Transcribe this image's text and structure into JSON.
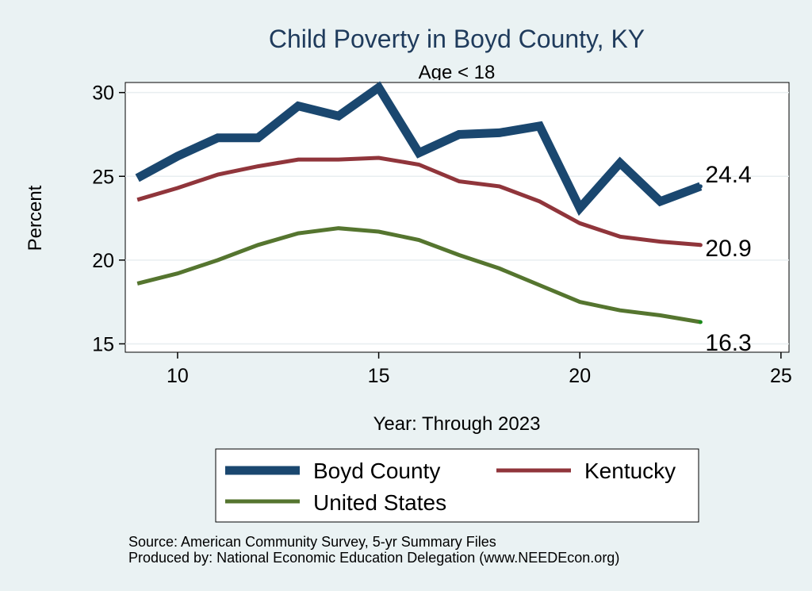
{
  "chart_data": {
    "type": "line",
    "title": "Child Poverty in Boyd County, KY",
    "subtitle": "Age < 18",
    "xlabel": "Year: Through 2023",
    "ylabel": "Percent",
    "xlim": [
      8.7,
      25.2
    ],
    "ylim": [
      14.5,
      30.6
    ],
    "xticks": [
      10,
      15,
      20,
      25
    ],
    "yticks": [
      15,
      20,
      25,
      30
    ],
    "grid": true,
    "legend_position": "bottom",
    "x": [
      9,
      10,
      11,
      12,
      13,
      14,
      15,
      16,
      17,
      18,
      19,
      20,
      21,
      22,
      23
    ],
    "series": [
      {
        "name": "Boyd County",
        "color": "#1a476f",
        "values": [
          24.9,
          26.2,
          27.3,
          27.3,
          29.2,
          28.6,
          30.3,
          26.4,
          27.5,
          27.6,
          28.0,
          23.1,
          25.8,
          23.5,
          24.4
        ],
        "end_label": "24.4"
      },
      {
        "name": "Kentucky",
        "color": "#90353b",
        "values": [
          23.6,
          24.3,
          25.1,
          25.6,
          26.0,
          26.0,
          26.1,
          25.7,
          24.7,
          24.4,
          23.5,
          22.2,
          21.4,
          21.1,
          20.9
        ],
        "end_label": "20.9"
      },
      {
        "name": "United States",
        "color": "#55752f",
        "values": [
          18.6,
          19.2,
          20.0,
          20.9,
          21.6,
          21.9,
          21.7,
          21.2,
          20.3,
          19.5,
          18.5,
          17.5,
          17.0,
          16.7,
          16.3
        ],
        "end_label": "16.3"
      }
    ]
  },
  "notes": {
    "source": "Source: American Community Survey, 5-yr Summary Files",
    "produced_by": "Produced by: National Economic Education Delegation (www.NEEDEcon.org)"
  }
}
